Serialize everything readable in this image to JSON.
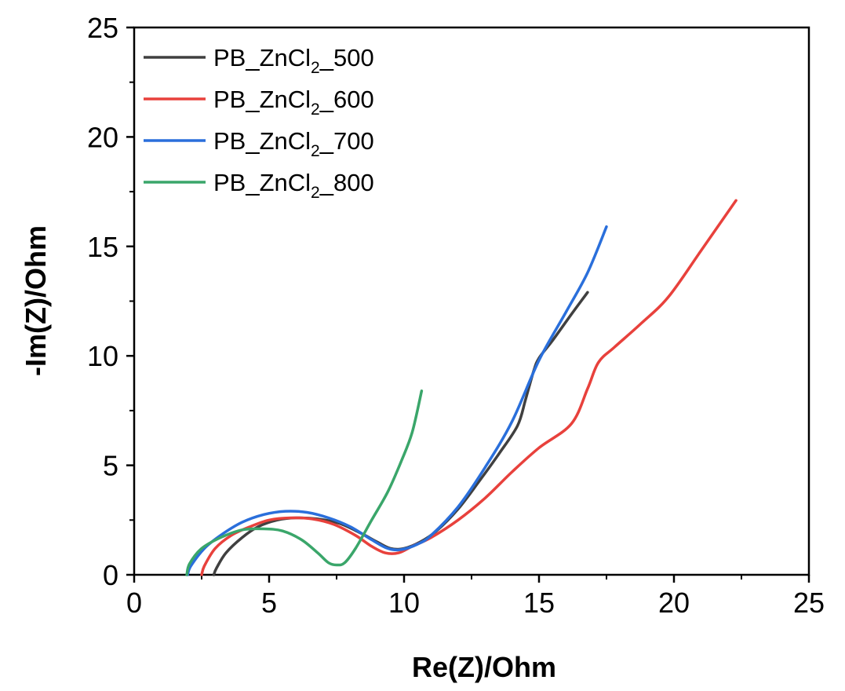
{
  "chart_data": {
    "type": "line",
    "title": "",
    "xlabel": "Re(Z)/Ohm",
    "ylabel": "-Im(Z)/Ohm",
    "xlim": [
      0,
      25
    ],
    "ylim": [
      0,
      25
    ],
    "xticks": [
      0,
      5,
      10,
      15,
      20,
      25
    ],
    "yticks": [
      0,
      5,
      10,
      15,
      20,
      25
    ],
    "xtick_labels": [
      "0",
      "5",
      "10",
      "15",
      "20",
      "25"
    ],
    "ytick_labels": [
      "0",
      "5",
      "10",
      "15",
      "20",
      "25"
    ],
    "grid": false,
    "legend_position": "top-left",
    "series": [
      {
        "name": "PB_ZnCl2_500",
        "legend_base": "PB_ZnCl",
        "legend_sub": "2",
        "legend_suffix": "_500",
        "color": "#404040",
        "points": [
          [
            2.95,
            0.0
          ],
          [
            3.05,
            0.3
          ],
          [
            3.4,
            1.0
          ],
          [
            4.0,
            1.7
          ],
          [
            4.6,
            2.2
          ],
          [
            5.3,
            2.5
          ],
          [
            6.0,
            2.6
          ],
          [
            6.8,
            2.55
          ],
          [
            7.6,
            2.35
          ],
          [
            8.4,
            1.9
          ],
          [
            9.0,
            1.5
          ],
          [
            9.5,
            1.2
          ],
          [
            10.0,
            1.2
          ],
          [
            10.6,
            1.5
          ],
          [
            11.2,
            2.0
          ],
          [
            12.0,
            3.0
          ],
          [
            12.8,
            4.3
          ],
          [
            13.5,
            5.5
          ],
          [
            14.2,
            6.8
          ],
          [
            14.5,
            8.0
          ],
          [
            14.8,
            9.3
          ],
          [
            15.0,
            9.9
          ],
          [
            15.5,
            10.7
          ],
          [
            16.2,
            11.9
          ],
          [
            16.8,
            12.9
          ]
        ]
      },
      {
        "name": "PB_ZnCl2_600",
        "legend_base": "PB_ZnCl",
        "legend_sub": "2",
        "legend_suffix": "_600",
        "color": "#e8413c",
        "points": [
          [
            2.5,
            0.0
          ],
          [
            2.6,
            0.4
          ],
          [
            3.0,
            1.2
          ],
          [
            3.6,
            1.8
          ],
          [
            4.3,
            2.2
          ],
          [
            5.0,
            2.5
          ],
          [
            5.8,
            2.6
          ],
          [
            6.6,
            2.55
          ],
          [
            7.4,
            2.3
          ],
          [
            8.2,
            1.8
          ],
          [
            8.8,
            1.3
          ],
          [
            9.3,
            1.0
          ],
          [
            9.8,
            1.0
          ],
          [
            10.3,
            1.3
          ],
          [
            11.0,
            1.7
          ],
          [
            12.0,
            2.5
          ],
          [
            13.0,
            3.5
          ],
          [
            14.0,
            4.7
          ],
          [
            15.0,
            5.8
          ],
          [
            16.2,
            6.9
          ],
          [
            16.8,
            8.5
          ],
          [
            17.2,
            9.7
          ],
          [
            17.8,
            10.4
          ],
          [
            18.8,
            11.5
          ],
          [
            19.8,
            12.7
          ],
          [
            21.0,
            14.8
          ],
          [
            22.3,
            17.1
          ]
        ]
      },
      {
        "name": "PB_ZnCl2_700",
        "legend_base": "PB_ZnCl",
        "legend_sub": "2",
        "legend_suffix": "_700",
        "color": "#2a6fdb",
        "points": [
          [
            1.98,
            0.0
          ],
          [
            2.1,
            0.4
          ],
          [
            2.6,
            1.2
          ],
          [
            3.2,
            1.8
          ],
          [
            4.0,
            2.4
          ],
          [
            4.8,
            2.75
          ],
          [
            5.6,
            2.9
          ],
          [
            6.4,
            2.85
          ],
          [
            7.2,
            2.6
          ],
          [
            8.0,
            2.2
          ],
          [
            8.8,
            1.6
          ],
          [
            9.4,
            1.2
          ],
          [
            9.9,
            1.15
          ],
          [
            10.5,
            1.4
          ],
          [
            11.0,
            1.8
          ],
          [
            12.0,
            3.1
          ],
          [
            13.0,
            4.9
          ],
          [
            14.0,
            7.0
          ],
          [
            15.0,
            9.8
          ],
          [
            16.0,
            12.0
          ],
          [
            16.8,
            13.8
          ],
          [
            17.5,
            15.9
          ]
        ]
      },
      {
        "name": "PB_ZnCl2_800",
        "legend_base": "PB_ZnCl",
        "legend_sub": "2",
        "legend_suffix": "_800",
        "color": "#3aa66a",
        "points": [
          [
            1.95,
            0.0
          ],
          [
            2.05,
            0.5
          ],
          [
            2.5,
            1.2
          ],
          [
            3.2,
            1.7
          ],
          [
            4.0,
            2.05
          ],
          [
            4.8,
            2.1
          ],
          [
            5.5,
            2.0
          ],
          [
            6.2,
            1.6
          ],
          [
            6.8,
            1.0
          ],
          [
            7.2,
            0.55
          ],
          [
            7.5,
            0.45
          ],
          [
            7.8,
            0.55
          ],
          [
            8.2,
            1.2
          ],
          [
            8.8,
            2.5
          ],
          [
            9.4,
            3.8
          ],
          [
            9.9,
            5.2
          ],
          [
            10.3,
            6.5
          ],
          [
            10.65,
            8.4
          ]
        ]
      }
    ]
  }
}
